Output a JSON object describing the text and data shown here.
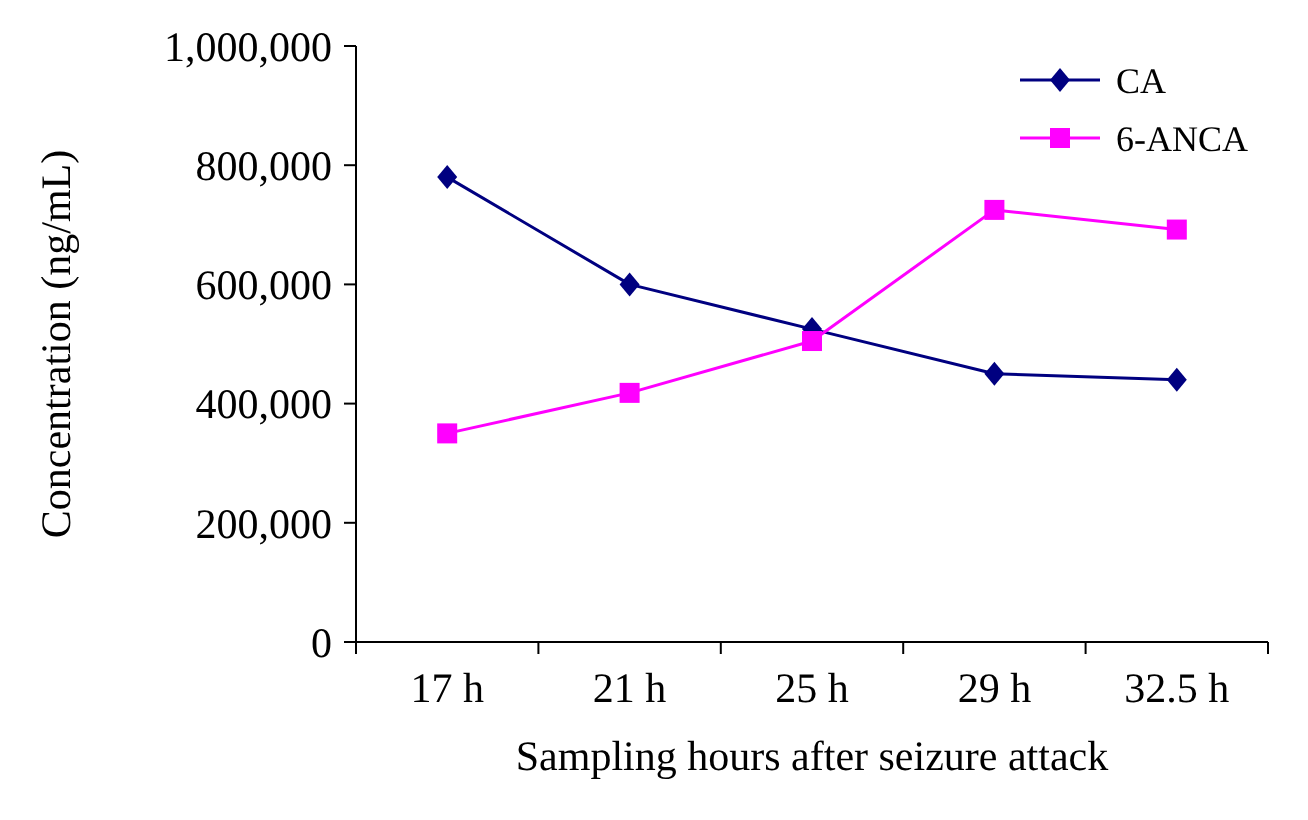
{
  "chart_data": {
    "type": "line",
    "xlabel": "Sampling hours after seizure attack",
    "ylabel": "Concentration (ng/mL)",
    "categories": [
      "17 h",
      "21 h",
      "25 h",
      "29 h",
      "32.5 h"
    ],
    "series": [
      {
        "name": "CA",
        "color": "#000080",
        "marker": "diamond",
        "values": [
          780000,
          600000,
          525000,
          450000,
          440000
        ]
      },
      {
        "name": "6-ANCA",
        "color": "#ff00ff",
        "marker": "square",
        "values": [
          350000,
          418000,
          505000,
          725000,
          692000
        ]
      }
    ],
    "ylim": [
      0,
      1000000
    ],
    "yticks": [
      {
        "value": 0,
        "label": "0"
      },
      {
        "value": 200000,
        "label": "200,000"
      },
      {
        "value": 400000,
        "label": "400,000"
      },
      {
        "value": 600000,
        "label": "600,000"
      },
      {
        "value": 800000,
        "label": "800,000"
      },
      {
        "value": 1000000,
        "label": "1,000,000"
      }
    ],
    "grid": false,
    "legend": "top right",
    "line_style": "solid"
  }
}
